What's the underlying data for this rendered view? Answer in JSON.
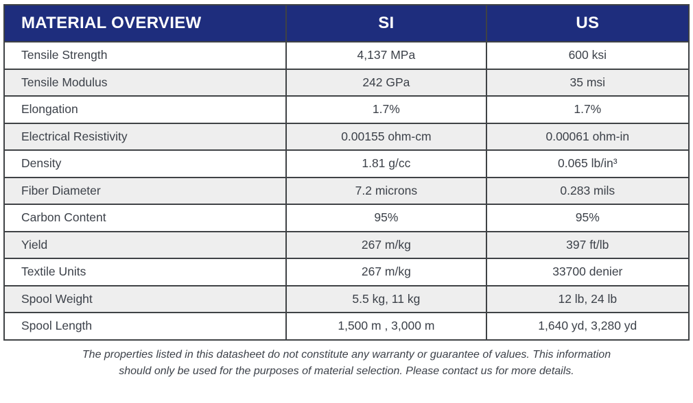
{
  "table": {
    "header": {
      "property_col": "MATERIAL OVERVIEW",
      "si_col": "SI",
      "us_col": "US"
    },
    "rows": [
      {
        "property": "Tensile Strength",
        "si": "4,137 MPa",
        "us": "600 ksi"
      },
      {
        "property": "Tensile Modulus",
        "si": "242 GPa",
        "us": "35 msi"
      },
      {
        "property": "Elongation",
        "si": "1.7%",
        "us": "1.7%"
      },
      {
        "property": "Electrical Resistivity",
        "si": "0.00155 ohm-cm",
        "us": "0.00061 ohm-in"
      },
      {
        "property": "Density",
        "si": "1.81 g/cc",
        "us": "0.065 lb/in³"
      },
      {
        "property": "Fiber Diameter",
        "si": "7.2 microns",
        "us": "0.283 mils"
      },
      {
        "property": "Carbon Content",
        "si": "95%",
        "us": "95%"
      },
      {
        "property": "Yield",
        "si": "267 m/kg",
        "us": "397 ft/lb"
      },
      {
        "property": "Textile Units",
        "si": "267 m/kg",
        "us": "33700 denier"
      },
      {
        "property": "Spool Weight",
        "si": "5.5 kg, 11 kg",
        "us": "12 lb, 24 lb"
      },
      {
        "property": "Spool Length",
        "si": "1,500 m , 3,000 m",
        "us": "1,640 yd, 3,280 yd"
      }
    ]
  },
  "footer": {
    "disclaimer_line1": "The properties listed in this datasheet do not constitute any warranty or guarantee of values. This information",
    "disclaimer_line2": "should only be used for the purposes of material selection. Please contact us for more details."
  },
  "colors": {
    "header_bg": "#1e2d7d",
    "header_text": "#ffffff",
    "row_bg": "#ffffff",
    "row_alt_bg": "#eeeeee",
    "border": "#3f4245",
    "body_text": "#3c4149"
  }
}
